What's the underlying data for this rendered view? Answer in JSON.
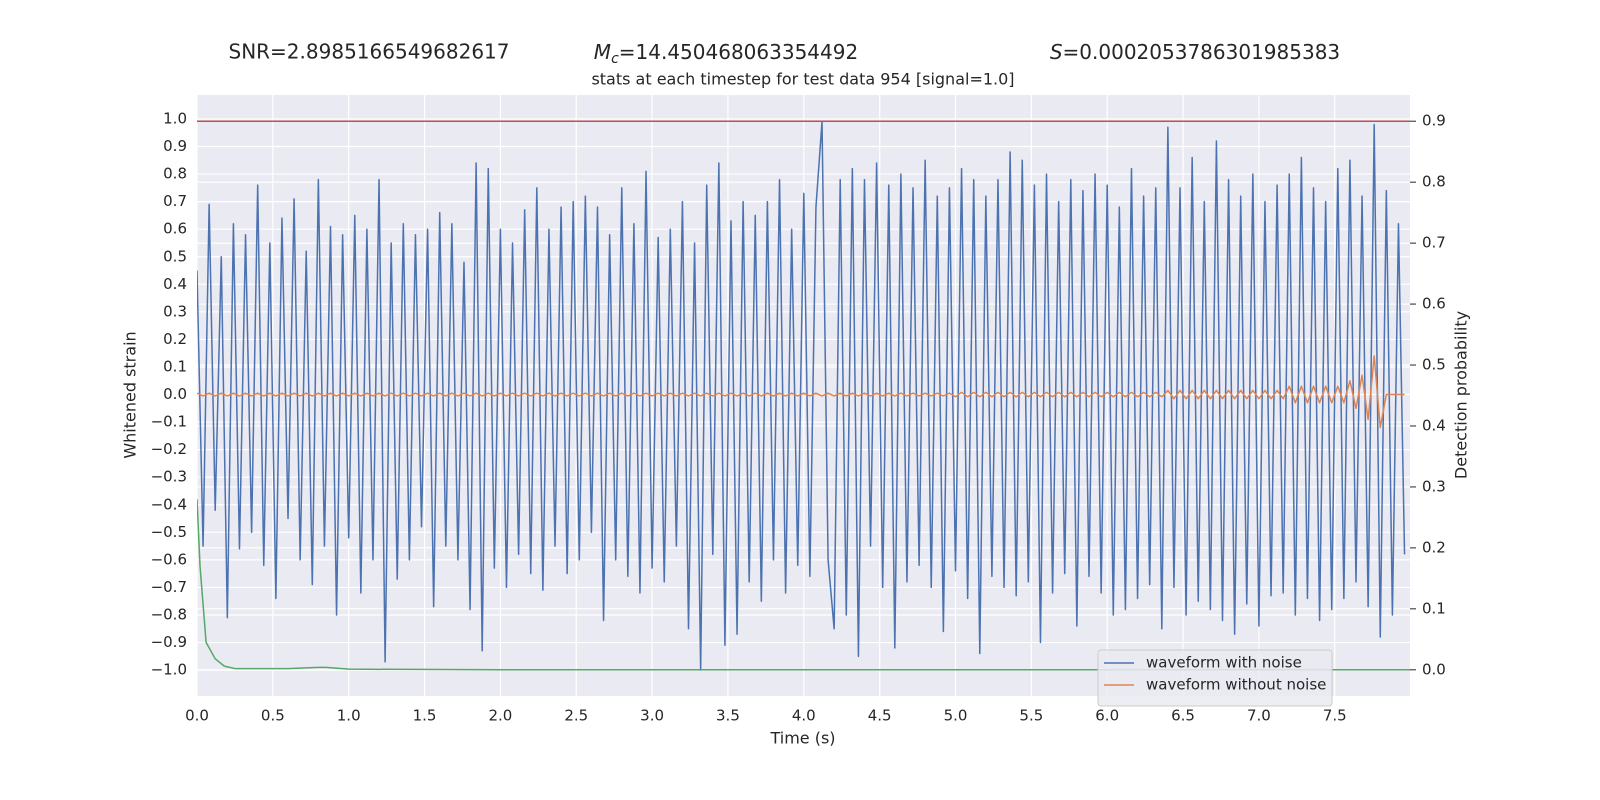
{
  "chart_data": {
    "type": "line",
    "header": [
      {
        "text": "SNR=2.8985166549682617"
      },
      {
        "symbol": "M",
        "subscript": "c",
        "text": "=14.450468063354492"
      },
      {
        "symbol": "S",
        "text": "=0.0002053786301985383"
      }
    ],
    "title": "stats at each timestep for test data 954 [signal=1.0]",
    "xlabel": "Time (s)",
    "ylabel": "Whitened strain",
    "y2label": "Detection probability",
    "xlim": [
      0,
      7.996
    ],
    "ylim": [
      -1.094,
      1.087
    ],
    "y2lim": [
      -0.043,
      0.943
    ],
    "xticks": [
      {
        "value": 0,
        "label": "0.0"
      },
      {
        "value": 0.5,
        "label": "0.5"
      },
      {
        "value": 1,
        "label": "1.0"
      },
      {
        "value": 1.5,
        "label": "1.5"
      },
      {
        "value": 2,
        "label": "2.0"
      },
      {
        "value": 2.5,
        "label": "2.5"
      },
      {
        "value": 3,
        "label": "3.0"
      },
      {
        "value": 3.5,
        "label": "3.5"
      },
      {
        "value": 4,
        "label": "4.0"
      },
      {
        "value": 4.5,
        "label": "4.5"
      },
      {
        "value": 5,
        "label": "5.0"
      },
      {
        "value": 5.5,
        "label": "5.5"
      },
      {
        "value": 6,
        "label": "6.0"
      },
      {
        "value": 6.5,
        "label": "6.5"
      },
      {
        "value": 7,
        "label": "7.0"
      },
      {
        "value": 7.5,
        "label": "7.5"
      }
    ],
    "yticks": [
      {
        "value": -1,
        "label": "−1.0"
      },
      {
        "value": -0.9,
        "label": "−0.9"
      },
      {
        "value": -0.8,
        "label": "−0.8"
      },
      {
        "value": -0.7,
        "label": "−0.7"
      },
      {
        "value": -0.6,
        "label": "−0.6"
      },
      {
        "value": -0.5,
        "label": "−0.5"
      },
      {
        "value": -0.4,
        "label": "−0.4"
      },
      {
        "value": -0.3,
        "label": "−0.3"
      },
      {
        "value": -0.2,
        "label": "−0.2"
      },
      {
        "value": -0.1,
        "label": "−0.1"
      },
      {
        "value": 0,
        "label": "0.0"
      },
      {
        "value": 0.1,
        "label": "0.1"
      },
      {
        "value": 0.2,
        "label": "0.2"
      },
      {
        "value": 0.3,
        "label": "0.3"
      },
      {
        "value": 0.4,
        "label": "0.4"
      },
      {
        "value": 0.5,
        "label": "0.5"
      },
      {
        "value": 0.6,
        "label": "0.6"
      },
      {
        "value": 0.7,
        "label": "0.7"
      },
      {
        "value": 0.8,
        "label": "0.8"
      },
      {
        "value": 0.9,
        "label": "0.9"
      },
      {
        "value": 1,
        "label": "1.0"
      }
    ],
    "y2ticks": [
      {
        "value": 0,
        "label": "0.0"
      },
      {
        "value": 0.1,
        "label": "0.1"
      },
      {
        "value": 0.2,
        "label": "0.2"
      },
      {
        "value": 0.3,
        "label": "0.3"
      },
      {
        "value": 0.4,
        "label": "0.4"
      },
      {
        "value": 0.5,
        "label": "0.5"
      },
      {
        "value": 0.6,
        "label": "0.6"
      },
      {
        "value": 0.7,
        "label": "0.7"
      },
      {
        "value": 0.8,
        "label": "0.8"
      },
      {
        "value": 0.9,
        "label": "0.9"
      }
    ],
    "grid": true,
    "legend": "lower right",
    "hlines": [
      {
        "value": 0.9,
        "axis": "y2",
        "color": "#c44e52"
      }
    ],
    "x": [
      0,
      0.04,
      0.08,
      0.12,
      0.16,
      0.2,
      0.24,
      0.28,
      0.32,
      0.36,
      0.4,
      0.44,
      0.48,
      0.52,
      0.56,
      0.6,
      0.64,
      0.68,
      0.72,
      0.76,
      0.8,
      0.84,
      0.88,
      0.92,
      0.96,
      1,
      1.04,
      1.08,
      1.12,
      1.16,
      1.2,
      1.24,
      1.28,
      1.32,
      1.36,
      1.4,
      1.44,
      1.48,
      1.52,
      1.56,
      1.6,
      1.64,
      1.68,
      1.72,
      1.76,
      1.8,
      1.84,
      1.88,
      1.92,
      1.96,
      2,
      2.04,
      2.08,
      2.12,
      2.16,
      2.2,
      2.24,
      2.28,
      2.32,
      2.36,
      2.4,
      2.44,
      2.48,
      2.52,
      2.56,
      2.6,
      2.64,
      2.68,
      2.72,
      2.76,
      2.8,
      2.84,
      2.88,
      2.92,
      2.96,
      3,
      3.04,
      3.08,
      3.12,
      3.16,
      3.2,
      3.24,
      3.28,
      3.32,
      3.36,
      3.4,
      3.44,
      3.48,
      3.52,
      3.56,
      3.6,
      3.64,
      3.68,
      3.72,
      3.76,
      3.8,
      3.84,
      3.88,
      3.92,
      3.96,
      4,
      4.04,
      4.08,
      4.12,
      4.16,
      4.2,
      4.24,
      4.28,
      4.32,
      4.36,
      4.4,
      4.44,
      4.48,
      4.52,
      4.56,
      4.6,
      4.64,
      4.68,
      4.72,
      4.76,
      4.8,
      4.84,
      4.88,
      4.92,
      4.96,
      5,
      5.04,
      5.08,
      5.12,
      5.16,
      5.2,
      5.24,
      5.28,
      5.32,
      5.36,
      5.4,
      5.44,
      5.48,
      5.52,
      5.56,
      5.6,
      5.64,
      5.68,
      5.72,
      5.76,
      5.8,
      5.84,
      5.88,
      5.92,
      5.96,
      6,
      6.04,
      6.08,
      6.12,
      6.16,
      6.2,
      6.24,
      6.28,
      6.32,
      6.36,
      6.4,
      6.44,
      6.48,
      6.52,
      6.56,
      6.6,
      6.64,
      6.68,
      6.72,
      6.76,
      6.8,
      6.84,
      6.88,
      6.92,
      6.96,
      7,
      7.04,
      7.08,
      7.12,
      7.16,
      7.2,
      7.24,
      7.28,
      7.32,
      7.36,
      7.4,
      7.44,
      7.48,
      7.52,
      7.56,
      7.6,
      7.64,
      7.68,
      7.72,
      7.76,
      7.8,
      7.84,
      7.88,
      7.92,
      7.96
    ],
    "series": [
      {
        "name": "waveform with noise",
        "color": "#4c72b0",
        "values": [
          0.45,
          -0.55,
          0.69,
          -0.42,
          0.5,
          -0.81,
          0.62,
          -0.56,
          0.58,
          -0.5,
          0.76,
          -0.62,
          0.55,
          -0.74,
          0.64,
          -0.45,
          0.71,
          -0.6,
          0.52,
          -0.69,
          0.78,
          -0.55,
          0.61,
          -0.8,
          0.58,
          -0.52,
          0.65,
          -0.72,
          0.6,
          -0.6,
          0.78,
          -0.97,
          0.55,
          -0.67,
          0.62,
          -0.6,
          0.58,
          -0.48,
          0.6,
          -0.77,
          0.66,
          -0.55,
          0.62,
          -0.6,
          0.48,
          -0.78,
          0.84,
          -0.93,
          0.82,
          -0.63,
          0.6,
          -0.7,
          0.55,
          -0.58,
          0.67,
          -0.65,
          0.75,
          -0.71,
          0.6,
          -0.55,
          0.68,
          -0.65,
          0.7,
          -0.6,
          0.72,
          -0.5,
          0.68,
          -0.82,
          0.58,
          -0.6,
          0.75,
          -0.66,
          0.62,
          -0.72,
          0.81,
          -0.63,
          0.57,
          -0.68,
          0.6,
          -0.55,
          0.7,
          -0.85,
          0.55,
          -1.0,
          0.76,
          -0.58,
          0.84,
          -0.91,
          0.63,
          -0.87,
          0.7,
          -0.68,
          0.65,
          -0.75,
          0.7,
          -0.6,
          0.78,
          -0.72,
          0.6,
          -0.62,
          0.73,
          -0.66,
          0.68,
          0.99,
          -0.6,
          -0.85,
          0.78,
          -0.8,
          0.82,
          -0.95,
          0.78,
          -0.55,
          0.84,
          -0.7,
          0.76,
          -0.92,
          0.8,
          -0.68,
          0.75,
          -0.62,
          0.85,
          -0.7,
          0.72,
          -0.86,
          0.75,
          -0.64,
          0.82,
          -0.74,
          0.78,
          -0.94,
          0.72,
          -0.66,
          0.78,
          -0.7,
          0.88,
          -0.73,
          0.85,
          -0.68,
          0.76,
          -0.9,
          0.8,
          -0.72,
          0.7,
          -0.65,
          0.78,
          -0.84,
          0.74,
          -0.66,
          0.8,
          -0.72,
          0.76,
          -0.8,
          0.68,
          -0.78,
          0.82,
          -0.74,
          0.72,
          -0.69,
          0.75,
          -0.85,
          0.97,
          -0.7,
          0.75,
          -0.8,
          0.86,
          -0.75,
          0.7,
          -0.78,
          0.92,
          -0.82,
          0.78,
          -0.87,
          0.72,
          -0.76,
          0.8,
          -0.84,
          0.7,
          -0.73,
          0.76,
          -0.72,
          0.8,
          -0.8,
          0.86,
          -0.74,
          0.75,
          -0.82,
          0.7,
          -0.78,
          0.82,
          -0.74,
          0.85,
          -0.68,
          0.72,
          -0.77,
          0.98,
          -0.88,
          0.74,
          -0.8,
          0.62,
          -0.58
        ]
      },
      {
        "name": "waveform without noise",
        "color": "#dd8452",
        "values": [
          0.005,
          -0.005,
          0.005,
          -0.005,
          0.005,
          -0.005,
          0.005,
          -0.005,
          0.005,
          -0.005,
          0.005,
          -0.005,
          0.005,
          -0.005,
          0.005,
          -0.005,
          0.005,
          -0.005,
          0.005,
          -0.005,
          0.005,
          -0.005,
          0.005,
          -0.005,
          0.005,
          -0.005,
          0.005,
          -0.005,
          0.005,
          -0.005,
          0.005,
          -0.005,
          0.005,
          -0.005,
          0.005,
          -0.005,
          0.005,
          -0.005,
          0.005,
          -0.005,
          0.005,
          -0.005,
          0.005,
          -0.005,
          0.005,
          -0.005,
          0.005,
          -0.005,
          0.005,
          -0.005,
          0.005,
          -0.005,
          0.005,
          -0.005,
          0.005,
          -0.005,
          0.005,
          -0.005,
          0.005,
          -0.005,
          0.005,
          -0.005,
          0.005,
          -0.005,
          0.005,
          -0.005,
          0.005,
          -0.005,
          0.005,
          -0.005,
          0.005,
          -0.005,
          0.005,
          -0.005,
          0.005,
          -0.005,
          0.005,
          -0.005,
          0.005,
          -0.005,
          0.005,
          -0.005,
          0.005,
          -0.005,
          0.005,
          -0.005,
          0.005,
          -0.005,
          0.005,
          -0.005,
          0.005,
          -0.005,
          0.005,
          -0.005,
          0.005,
          -0.005,
          0.005,
          -0.005,
          0.005,
          -0.005,
          0.005,
          -0.005,
          0.005,
          -0.005,
          0.005,
          -0.005,
          0.005,
          -0.005,
          0.005,
          -0.005,
          0.005,
          -0.005,
          0.005,
          -0.005,
          0.005,
          -0.005,
          0.005,
          -0.005,
          0.005,
          -0.005,
          0.005,
          -0.005,
          0.005,
          -0.005,
          0.005,
          -0.008,
          0.008,
          -0.008,
          0.008,
          -0.008,
          0.008,
          -0.008,
          0.008,
          -0.008,
          0.008,
          -0.008,
          0.008,
          -0.008,
          0.008,
          -0.008,
          0.008,
          -0.008,
          0.008,
          -0.008,
          0.008,
          -0.008,
          0.008,
          -0.008,
          0.008,
          -0.008,
          0.008,
          -0.008,
          0.008,
          -0.008,
          0.008,
          -0.008,
          0.008,
          -0.008,
          0.008,
          -0.008,
          0.015,
          -0.015,
          0.015,
          -0.015,
          0.015,
          -0.015,
          0.015,
          -0.015,
          0.015,
          -0.015,
          0.015,
          -0.015,
          0.015,
          -0.015,
          0.015,
          -0.015,
          0.015,
          -0.015,
          0.015,
          -0.015,
          0.03,
          -0.03,
          0.03,
          -0.03,
          0.03,
          -0.03,
          0.03,
          -0.03,
          0.03,
          -0.03,
          0.05,
          -0.05,
          0.07,
          -0.09,
          0.14,
          -0.12,
          0,
          0,
          0,
          0
        ]
      },
      {
        "color": "#55a868",
        "axis": "y2",
        "x": [
          0,
          0.02,
          0.06,
          0.12,
          0.18,
          0.25,
          0.4,
          0.6,
          0.8,
          0.85,
          1,
          2,
          4,
          6,
          7,
          7.996
        ],
        "values": [
          0.28,
          0.17,
          0.045,
          0.018,
          0.006,
          0.002,
          0.002,
          0.002,
          0.004,
          0.004,
          0.001,
          0,
          0,
          0,
          0,
          0
        ]
      }
    ]
  }
}
